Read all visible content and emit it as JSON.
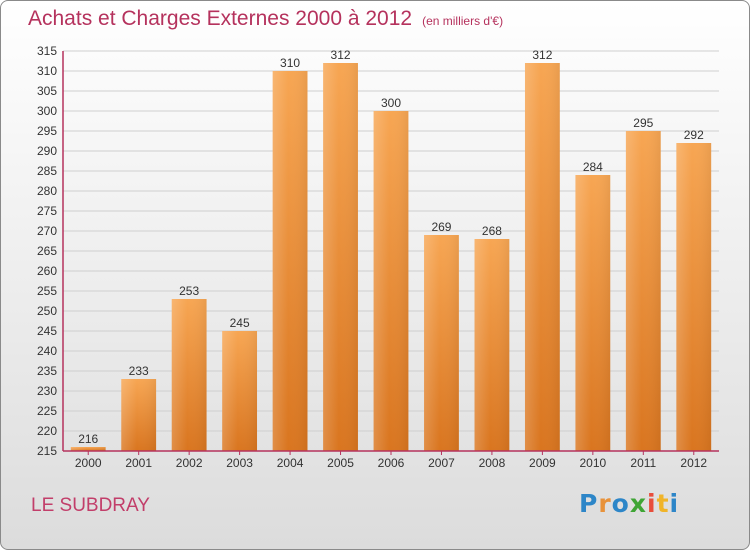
{
  "header": {
    "title": "Achats et Charges Externes 2000 à 2012",
    "subtitle": "(en milliers d'€)"
  },
  "footer": {
    "city": "LE SUBDRAY",
    "logo_text": "Proxiti"
  },
  "colors": {
    "title": "#b5325d",
    "bar_top": "#f7a653",
    "bar_bottom": "#d9751f",
    "axis": "#b5325d"
  },
  "chart_data": {
    "type": "bar",
    "title": "Achats et Charges Externes 2000 à 2012",
    "subtitle": "(en milliers d'€)",
    "xlabel": "",
    "ylabel": "",
    "categories": [
      "2000",
      "2001",
      "2002",
      "2003",
      "2004",
      "2005",
      "2006",
      "2007",
      "2008",
      "2009",
      "2010",
      "2011",
      "2012"
    ],
    "values": [
      216,
      233,
      253,
      245,
      310,
      312,
      300,
      269,
      268,
      312,
      284,
      295,
      292
    ],
    "ylim": [
      215,
      315
    ],
    "yticks": [
      215,
      220,
      225,
      230,
      235,
      240,
      245,
      250,
      255,
      260,
      265,
      270,
      275,
      280,
      285,
      290,
      295,
      300,
      305,
      310,
      315
    ],
    "grid": "horizontal",
    "data_labels": true
  }
}
